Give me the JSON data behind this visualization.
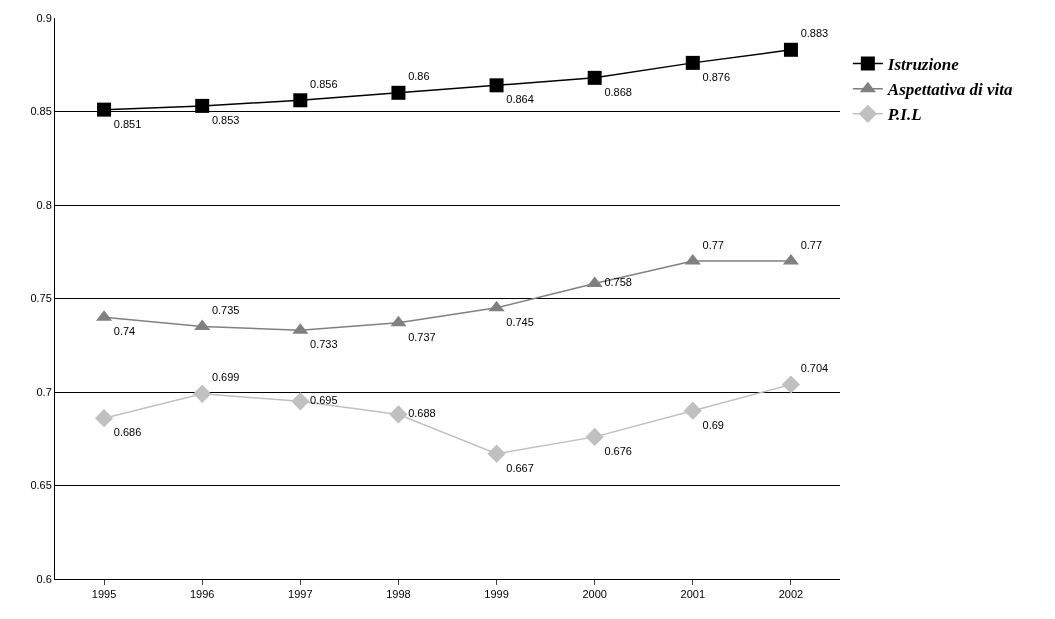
{
  "chart_data": {
    "type": "line",
    "categories": [
      "1995",
      "1996",
      "1997",
      "1998",
      "1999",
      "2000",
      "2001",
      "2002"
    ],
    "series": [
      {
        "name": "Istruzione",
        "color": "#000000",
        "marker": "square",
        "values": [
          0.851,
          0.853,
          0.856,
          0.86,
          0.864,
          0.868,
          0.876,
          0.883
        ]
      },
      {
        "name": "Aspettativa di vita",
        "color": "#808080",
        "marker": "triangle",
        "values": [
          0.74,
          0.735,
          0.733,
          0.737,
          0.745,
          0.758,
          0.77,
          0.77
        ]
      },
      {
        "name": "P.I.L",
        "color": "#c0c0c0",
        "marker": "diamond",
        "values": [
          0.686,
          0.699,
          0.695,
          0.688,
          0.667,
          0.676,
          0.69,
          0.704
        ]
      }
    ],
    "ylim": [
      0.6,
      0.9
    ],
    "yticks": [
      0.6,
      0.65,
      0.7,
      0.75,
      0.8,
      0.85,
      0.9
    ],
    "grid": "y",
    "legend": "right",
    "data_labels": true,
    "line_style": "solid"
  }
}
